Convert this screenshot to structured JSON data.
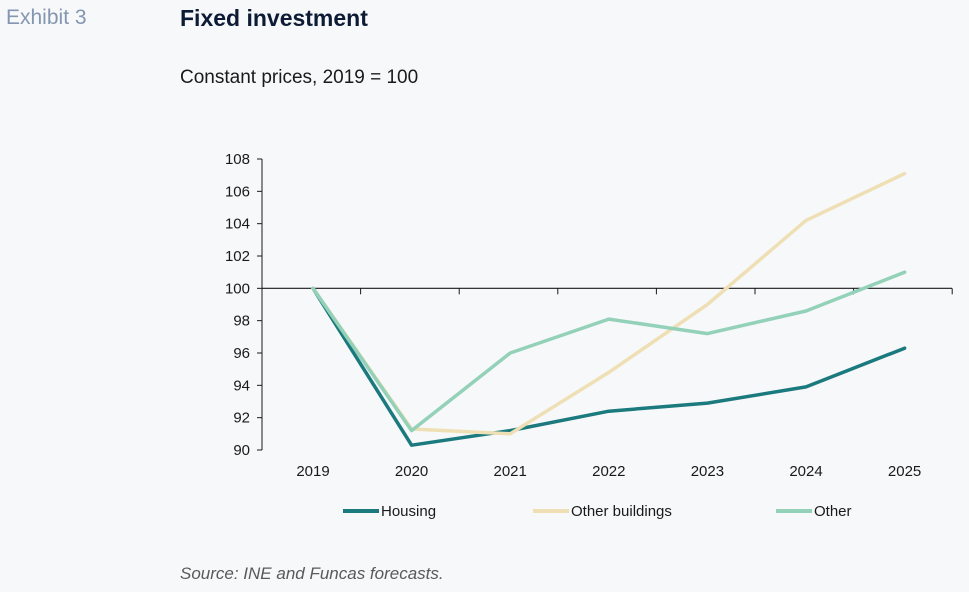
{
  "header": {
    "exhibit_label": "Exhibit 3",
    "title": "Fixed investment",
    "subtitle": "Constant prices, 2019 = 100"
  },
  "footer": {
    "source": "Source: INE and Funcas forecasts."
  },
  "chart_data": {
    "type": "line",
    "x": [
      "2019",
      "2020",
      "2021",
      "2022",
      "2023",
      "2024",
      "2025"
    ],
    "ylim": [
      90,
      108
    ],
    "yticks": [
      90,
      92,
      94,
      96,
      98,
      100,
      102,
      104,
      106,
      108
    ],
    "xaxis_crosses_at": 100,
    "grid": false,
    "legend_position": "bottom",
    "series": [
      {
        "name": "Housing",
        "color": "#1b7a7e",
        "values": [
          100,
          90.3,
          91.2,
          92.4,
          92.9,
          93.9,
          96.3
        ]
      },
      {
        "name": "Other buildings",
        "color": "#efdfb5",
        "values": [
          100,
          91.3,
          91.0,
          94.8,
          99.0,
          104.2,
          107.1
        ]
      },
      {
        "name": "Other",
        "color": "#94d1b9",
        "values": [
          100,
          91.2,
          96.0,
          98.1,
          97.2,
          98.6,
          101.0
        ]
      }
    ]
  }
}
